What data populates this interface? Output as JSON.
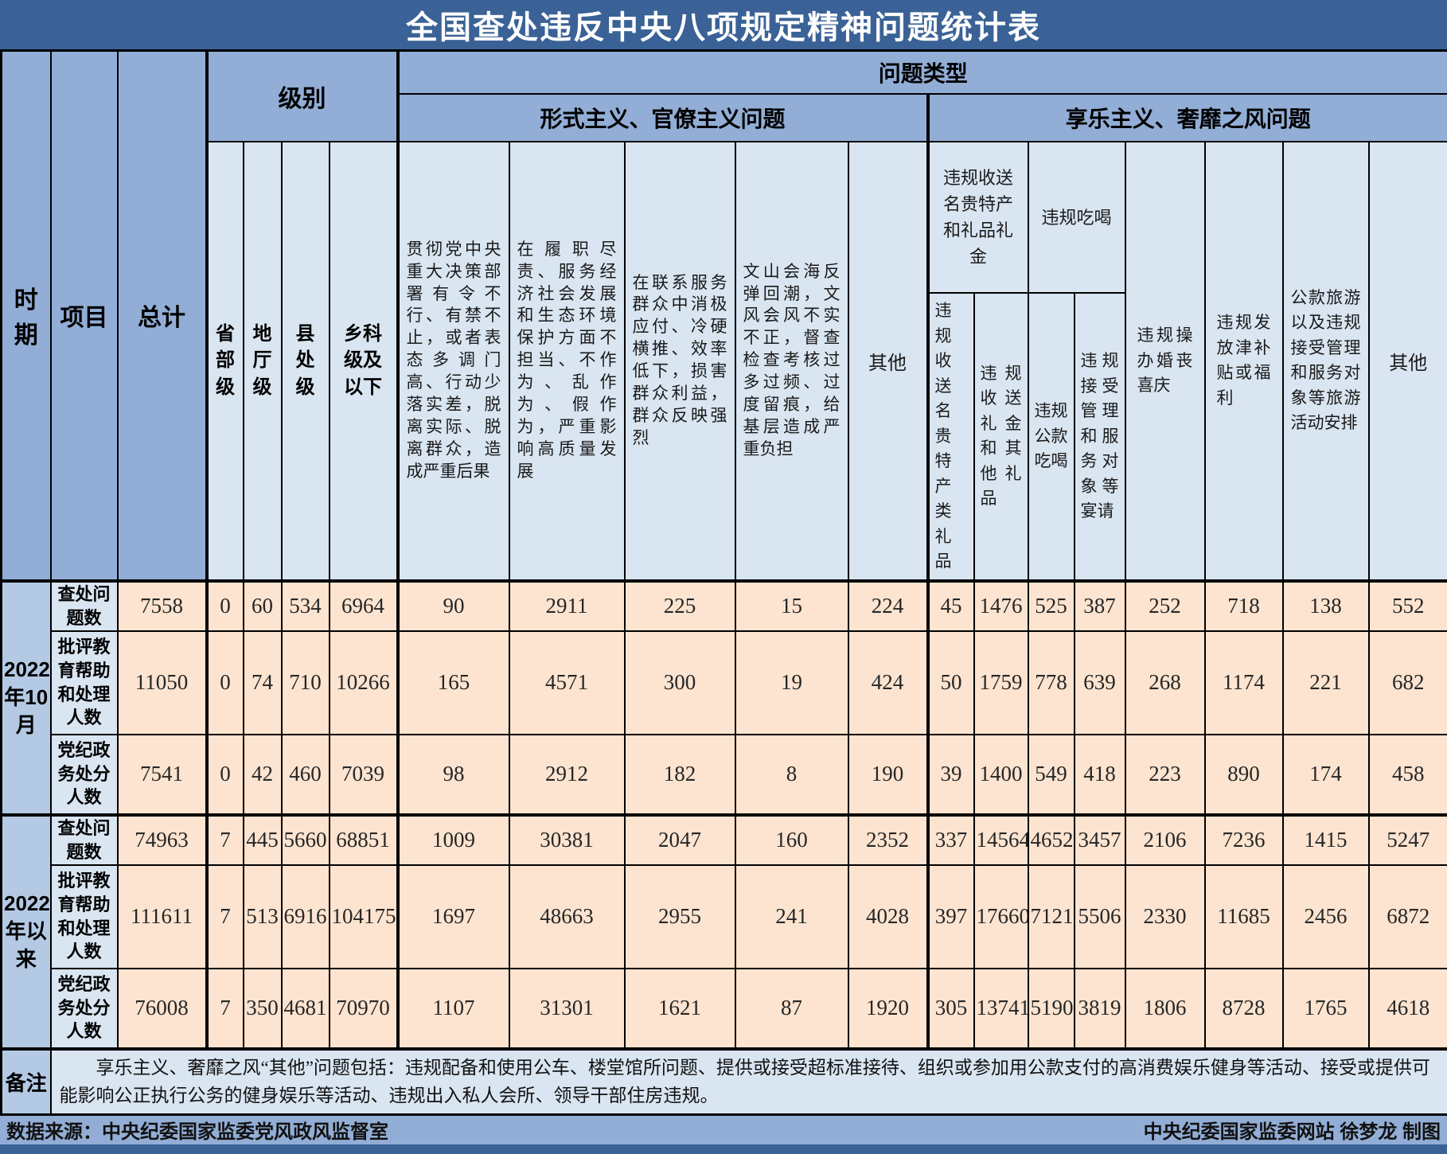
{
  "title": "全国查处违反中央八项规定精神问题统计表",
  "header": {
    "period": "时期",
    "item": "项目",
    "total": "总计",
    "level_group": "级别",
    "level_cols": [
      "省部级",
      "地厅级",
      "县处级",
      "乡科级及以下"
    ],
    "problem_type": "问题类型",
    "formalism_group": "形式主义、官僚主义问题",
    "formalism_cols": [
      "贯彻党中央重大决策部署有令不行、有禁不止，或者表态多调门高、行动少落实差，脱离实际、脱离群众，造成严重后果",
      "在履职尽责、服务经济社会发展和生态环境保护方面不担当、不作为、乱作为、假作为，严重影响高质量发展",
      "在联系服务群众中消极应付、冷硬横推、效率低下，损害群众利益，群众反映强烈",
      "文山会海反弹回潮，文风会风不实不正，督查检查考核过多过频、过度留痕，给基层造成严重负担",
      "其他"
    ],
    "hedonism_group": "享乐主义、奢靡之风问题",
    "gifts_group": "违规收送名贵特产和礼品礼金",
    "gifts_cols": [
      "违规收送名贵特产类礼品",
      "违规收送礼金和其他礼品"
    ],
    "dining_group": "违规吃喝",
    "dining_cols": [
      "违规公款吃喝",
      "违规接受管理和服务对象等宴请"
    ],
    "single_cols": [
      "违规操办婚丧喜庆",
      "违规发放津补贴或福利",
      "公款旅游以及违规接受管理和服务对象等旅游活动安排",
      "其他"
    ]
  },
  "chart_data": {
    "type": "table",
    "title": "全国查处违反中央八项规定精神问题统计表",
    "value_columns": [
      "总计",
      "省部级",
      "地厅级",
      "县处级",
      "乡科级及以下",
      "贯彻党中央重大决策部署有令不行、有禁不止，或者表态多调门高、行动少落实差，脱离实际、脱离群众，造成严重后果",
      "在履职尽责、服务经济社会发展和生态环境保护方面不担当、不作为、乱作为、假作为，严重影响高质量发展",
      "在联系服务群众中消极应付、冷硬横推、效率低下，损害群众利益，群众反映强烈",
      "文山会海反弹回潮，文风会风不实不正，督查检查考核过多过频、过度留痕，给基层造成严重负担",
      "形式主义、官僚主义其他",
      "违规收送名贵特产类礼品",
      "违规收送礼金和其他礼品",
      "违规公款吃喝",
      "违规接受管理和服务对象等宴请",
      "违规操办婚丧喜庆",
      "违规发放津补贴或福利",
      "公款旅游以及违规接受管理和服务对象等旅游活动安排",
      "享乐主义、奢靡之风其他"
    ],
    "rows": [
      {
        "period": "2022年10月",
        "items": [
          {
            "label": "查处问题数",
            "values": [
              7558,
              0,
              60,
              534,
              6964,
              90,
              2911,
              225,
              15,
              224,
              45,
              1476,
              525,
              387,
              252,
              718,
              138,
              552
            ]
          },
          {
            "label": "批评教育帮助和处理人数",
            "values": [
              11050,
              0,
              74,
              710,
              10266,
              165,
              4571,
              300,
              19,
              424,
              50,
              1759,
              778,
              639,
              268,
              1174,
              221,
              682
            ]
          },
          {
            "label": "党纪政务处分人数",
            "values": [
              7541,
              0,
              42,
              460,
              7039,
              98,
              2912,
              182,
              8,
              190,
              39,
              1400,
              549,
              418,
              223,
              890,
              174,
              458
            ]
          }
        ]
      },
      {
        "period": "2022年以来",
        "items": [
          {
            "label": "查处问题数",
            "values": [
              74963,
              7,
              445,
              5660,
              68851,
              1009,
              30381,
              2047,
              160,
              2352,
              337,
              14564,
              4652,
              3457,
              2106,
              7236,
              1415,
              5247
            ]
          },
          {
            "label": "批评教育帮助和处理人数",
            "values": [
              111611,
              7,
              513,
              6916,
              104175,
              1697,
              48663,
              2955,
              241,
              4028,
              397,
              17660,
              7121,
              5506,
              2330,
              11685,
              2456,
              6872
            ]
          },
          {
            "label": "党纪政务处分人数",
            "values": [
              76008,
              7,
              350,
              4681,
              70970,
              1107,
              31301,
              1621,
              87,
              1920,
              305,
              13741,
              5190,
              3819,
              1806,
              8728,
              1765,
              4618
            ]
          }
        ]
      }
    ]
  },
  "remark_label": "备注",
  "remark_text": "享乐主义、奢靡之风“其他”问题包括：违规配备和使用公车、楼堂馆所问题、提供或接受超标准接待、组织或参加用公款支付的高消费娱乐健身等活动、接受或提供可能影响公正执行公务的健身娱乐等活动、违规出入私人会所、领导干部住房违规。",
  "footer_left": "数据来源：中央纪委国家监委党风政风监督室",
  "footer_right": "中央纪委国家监委网站 徐梦龙 制图",
  "colors": {
    "title_bg": "#3a6296",
    "group_bg": "#92aed6",
    "leaf_bg": "#d9e5f1",
    "data_bg": "#fce4d0",
    "period_bg": "#b4c9e3",
    "footer_bg": "#92aed6"
  }
}
